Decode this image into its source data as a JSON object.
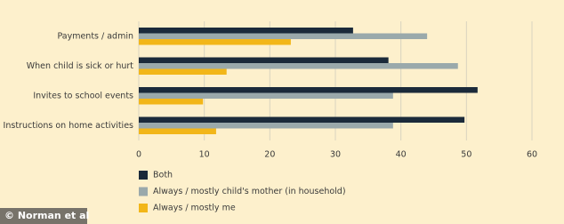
{
  "chart_data": {
    "type": "bar",
    "orientation": "horizontal",
    "categories": [
      "Payments / admin",
      "When child is sick or hurt",
      "Invites to school events",
      "Instructions on home activities"
    ],
    "series": [
      {
        "name": "Both",
        "color": "#1b2a3a",
        "values": [
          32.7,
          38.1,
          51.7,
          49.7
        ]
      },
      {
        "name": "Always / mostly child's mother (in household)",
        "color": "#9aa9ab",
        "values": [
          44,
          48.7,
          38.8,
          38.8
        ]
      },
      {
        "name": "Always / mostly me",
        "color": "#f2b619",
        "values": [
          23.2,
          13.4,
          9.8,
          11.8
        ]
      }
    ],
    "xlim": [
      0,
      60
    ],
    "xticks": [
      0,
      10,
      20,
      30,
      40,
      50,
      60
    ],
    "grid": true,
    "source": "© Norman et al"
  }
}
